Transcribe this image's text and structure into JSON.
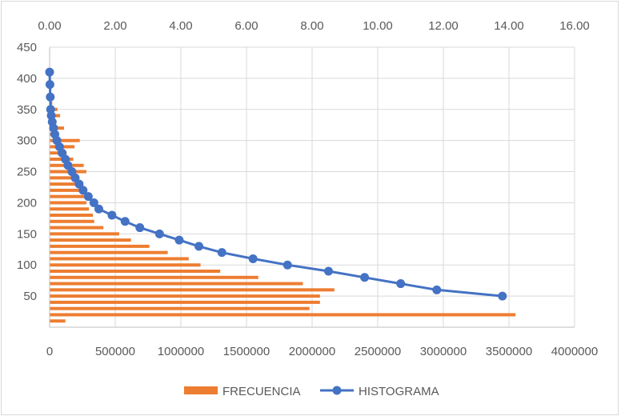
{
  "chart_data": {
    "type": "bar",
    "orientation": "horizontal",
    "grid": true,
    "legend_position": "bottom",
    "primary_x": {
      "ticks": [
        "0",
        "500000",
        "1000000",
        "1500000",
        "2000000",
        "2500000",
        "3000000",
        "3500000",
        "4000000"
      ],
      "range": [
        0,
        4000000
      ]
    },
    "secondary_x": {
      "ticks": [
        "0.00",
        "2.00",
        "4.00",
        "6.00",
        "8.00",
        "10.00",
        "12.00",
        "14.00",
        "16.00"
      ],
      "range": [
        0,
        16
      ]
    },
    "y_axis": {
      "ticks": [
        "50",
        "100",
        "150",
        "200",
        "250",
        "300",
        "350",
        "400",
        "450"
      ],
      "range": [
        0,
        450
      ]
    },
    "series": [
      {
        "name": "FRECUENCIA",
        "type": "bar",
        "color": "#ED7D31",
        "y": [
          10,
          20,
          30,
          40,
          50,
          60,
          70,
          80,
          90,
          100,
          110,
          120,
          130,
          140,
          150,
          160,
          170,
          180,
          190,
          200,
          210,
          220,
          230,
          240,
          250,
          260,
          270,
          280,
          290,
          300,
          310,
          320,
          330,
          340,
          350,
          360,
          370,
          380,
          390,
          400,
          410
        ],
        "values": [
          120000,
          3550000,
          1980000,
          2060000,
          2060000,
          2170000,
          1930000,
          1590000,
          1300000,
          1150000,
          1060000,
          900000,
          760000,
          620000,
          530000,
          410000,
          340000,
          330000,
          300000,
          280000,
          280000,
          280000,
          240000,
          210000,
          280000,
          260000,
          180000,
          130000,
          190000,
          230000,
          40000,
          110000,
          50000,
          80000,
          60000,
          20000,
          15000,
          10000,
          8000,
          5000,
          3000
        ]
      },
      {
        "name": "HISTOGRAMA",
        "type": "line",
        "color": "#4472C4",
        "x": [
          13.8,
          11.8,
          10.7,
          9.6,
          8.5,
          7.25,
          6.2,
          5.25,
          4.55,
          3.95,
          3.35,
          2.75,
          2.3,
          1.9,
          1.5,
          1.35,
          1.18,
          1.02,
          0.9,
          0.78,
          0.68,
          0.56,
          0.48,
          0.38,
          0.3,
          0.22,
          0.16,
          0.12,
          0.08,
          0.05,
          0.03,
          0.02,
          0.01,
          0.0
        ],
        "y": [
          50,
          60,
          70,
          80,
          90,
          100,
          110,
          120,
          130,
          140,
          150,
          160,
          170,
          180,
          190,
          200,
          210,
          220,
          230,
          240,
          250,
          260,
          270,
          280,
          290,
          300,
          310,
          320,
          330,
          340,
          350,
          370,
          390,
          410
        ]
      }
    ]
  }
}
